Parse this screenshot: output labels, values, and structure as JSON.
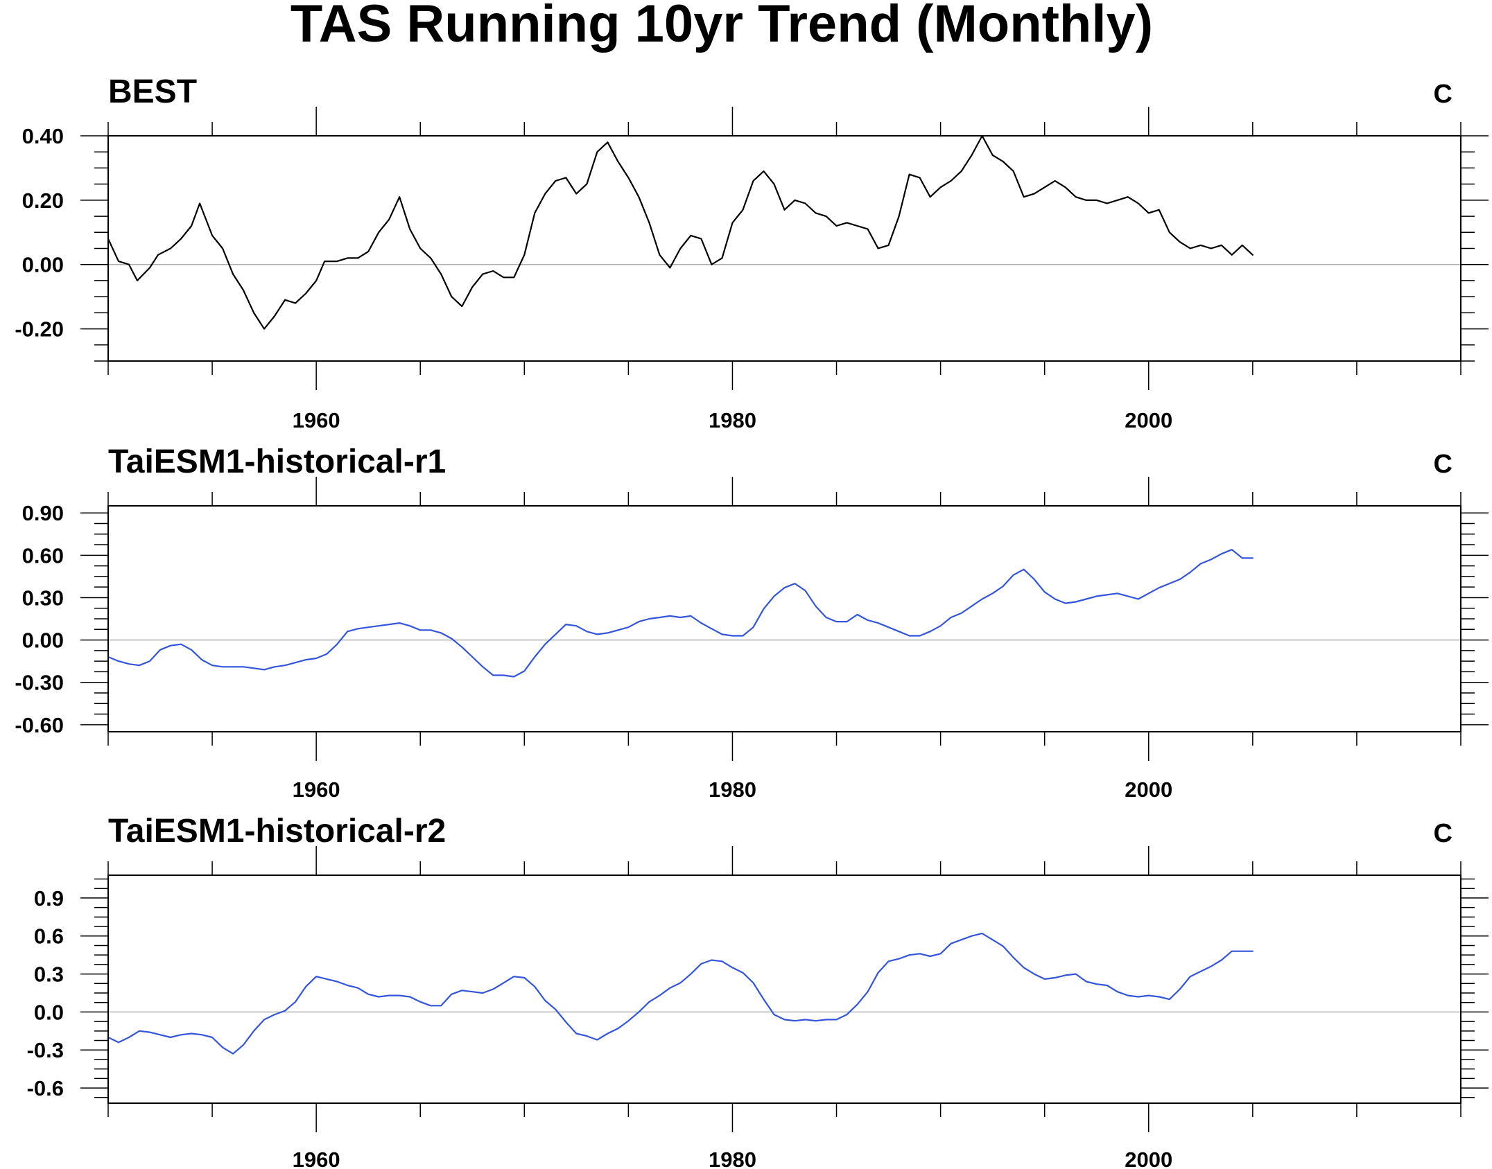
{
  "figure": {
    "title": "TAS Running 10yr Trend (Monthly)"
  },
  "colors": {
    "axis": "#000000",
    "zero_line": "#b0b0b0"
  },
  "chart_data": [
    {
      "type": "line",
      "title": "BEST",
      "unit": "C",
      "xlim": [
        1950,
        2015
      ],
      "ylim": [
        -0.3,
        0.4
      ],
      "yticks": [
        -0.2,
        0.0,
        0.2,
        0.4
      ],
      "ytick_labels": [
        "-0.20",
        "0.00",
        "0.20",
        "0.40"
      ],
      "xticks": [
        1960,
        1980,
        2000
      ],
      "xtick_labels": [
        "1960",
        "1980",
        "2000"
      ],
      "zero_line": 0,
      "series": [
        {
          "color": "#000000",
          "x": [
            1950.0,
            1950.5,
            1951.0,
            1951.4,
            1952.0,
            1952.4,
            1953.0,
            1953.5,
            1954.0,
            1954.4,
            1955.0,
            1955.5,
            1956.0,
            1956.5,
            1957.0,
            1957.5,
            1958.0,
            1958.5,
            1959.0,
            1959.5,
            1960.0,
            1960.4,
            1961.0,
            1961.5,
            1962.0,
            1962.5,
            1963.0,
            1963.5,
            1964.0,
            1964.5,
            1965.0,
            1965.5,
            1966.0,
            1966.5,
            1967.0,
            1967.5,
            1968.0,
            1968.5,
            1969.0,
            1969.5,
            1970.0,
            1970.5,
            1971.0,
            1971.5,
            1972.0,
            1972.5,
            1973.0,
            1973.5,
            1974.0,
            1974.5,
            1975.0,
            1975.5,
            1976.0,
            1976.5,
            1977.0,
            1977.5,
            1978.0,
            1978.5,
            1979.0,
            1979.5,
            1980.0,
            1980.5,
            1981.0,
            1981.5,
            1982.0,
            1982.5,
            1983.0,
            1983.5,
            1984.0,
            1984.5,
            1985.0,
            1985.5,
            1986.0,
            1986.5,
            1987.0,
            1987.5,
            1988.0,
            1988.5,
            1989.0,
            1989.5,
            1990.0,
            1990.5,
            1991.0,
            1991.5,
            1992.0,
            1992.5,
            1993.0,
            1993.5,
            1994.0,
            1994.5,
            1995.0,
            1995.5,
            1996.0,
            1996.5,
            1997.0,
            1997.5,
            1998.0,
            1998.5,
            1999.0,
            1999.5,
            2000.0,
            2000.5,
            2001.0,
            2001.5,
            2002.0,
            2002.5,
            2003.0,
            2003.5,
            2004.0,
            2004.5,
            2005.0
          ],
          "y": [
            0.08,
            0.01,
            0.0,
            -0.05,
            -0.01,
            0.03,
            0.05,
            0.08,
            0.12,
            0.19,
            0.09,
            0.05,
            -0.03,
            -0.08,
            -0.15,
            -0.2,
            -0.16,
            -0.11,
            -0.12,
            -0.09,
            -0.05,
            0.01,
            0.01,
            0.02,
            0.02,
            0.04,
            0.1,
            0.14,
            0.21,
            0.11,
            0.05,
            0.02,
            -0.03,
            -0.1,
            -0.13,
            -0.07,
            -0.03,
            -0.02,
            -0.04,
            -0.04,
            0.03,
            0.16,
            0.22,
            0.26,
            0.27,
            0.22,
            0.25,
            0.35,
            0.38,
            0.32,
            0.27,
            0.21,
            0.13,
            0.03,
            -0.01,
            0.05,
            0.09,
            0.08,
            0.0,
            0.02,
            0.13,
            0.17,
            0.26,
            0.29,
            0.25,
            0.17,
            0.2,
            0.19,
            0.16,
            0.15,
            0.12,
            0.13,
            0.12,
            0.11,
            0.05,
            0.06,
            0.15,
            0.28,
            0.27,
            0.21,
            0.24,
            0.26,
            0.29,
            0.34,
            0.4,
            0.34,
            0.32,
            0.29,
            0.21,
            0.22,
            0.24,
            0.26,
            0.24,
            0.21,
            0.2,
            0.2,
            0.19,
            0.2,
            0.21,
            0.19,
            0.16,
            0.17,
            0.1,
            0.07,
            0.05,
            0.06,
            0.05,
            0.06,
            0.03,
            0.06,
            0.03
          ]
        }
      ]
    },
    {
      "type": "line",
      "title": "TaiESM1-historical-r1",
      "unit": "C",
      "xlim": [
        1950,
        2015
      ],
      "ylim": [
        -0.65,
        0.95
      ],
      "yticks": [
        -0.6,
        -0.3,
        0.0,
        0.3,
        0.6,
        0.9
      ],
      "ytick_labels": [
        "-0.60",
        "-0.30",
        "0.00",
        "0.30",
        "0.60",
        "0.90"
      ],
      "xticks": [
        1960,
        1980,
        2000
      ],
      "xtick_labels": [
        "1960",
        "1980",
        "2000"
      ],
      "zero_line": 0,
      "series": [
        {
          "color": "#3355dd",
          "x": [
            1950.0,
            1950.5,
            1951.0,
            1951.5,
            1952.0,
            1952.5,
            1953.0,
            1953.5,
            1954.0,
            1954.5,
            1955.0,
            1955.5,
            1956.0,
            1956.5,
            1957.0,
            1957.5,
            1958.0,
            1958.5,
            1959.0,
            1959.5,
            1960.0,
            1960.5,
            1961.0,
            1961.5,
            1962.0,
            1962.5,
            1963.0,
            1963.5,
            1964.0,
            1964.5,
            1965.0,
            1965.5,
            1966.0,
            1966.5,
            1967.0,
            1967.5,
            1968.0,
            1968.5,
            1969.0,
            1969.5,
            1970.0,
            1970.5,
            1971.0,
            1971.5,
            1972.0,
            1972.5,
            1973.0,
            1973.5,
            1974.0,
            1974.5,
            1975.0,
            1975.5,
            1976.0,
            1976.5,
            1977.0,
            1977.5,
            1978.0,
            1978.5,
            1979.0,
            1979.5,
            1980.0,
            1980.5,
            1981.0,
            1981.5,
            1982.0,
            1982.5,
            1983.0,
            1983.5,
            1984.0,
            1984.5,
            1985.0,
            1985.5,
            1986.0,
            1986.5,
            1987.0,
            1987.5,
            1988.0,
            1988.5,
            1989.0,
            1989.5,
            1990.0,
            1990.5,
            1991.0,
            1991.5,
            1992.0,
            1992.5,
            1993.0,
            1993.5,
            1994.0,
            1994.5,
            1995.0,
            1995.5,
            1996.0,
            1996.5,
            1997.0,
            1997.5,
            1998.0,
            1998.5,
            1999.0,
            1999.5,
            2000.0,
            2000.5,
            2001.0,
            2001.5,
            2002.0,
            2002.5,
            2003.0,
            2003.5,
            2004.0,
            2004.5,
            2005.0
          ],
          "y": [
            -0.12,
            -0.15,
            -0.17,
            -0.18,
            -0.15,
            -0.07,
            -0.04,
            -0.03,
            -0.07,
            -0.14,
            -0.18,
            -0.19,
            -0.19,
            -0.19,
            -0.2,
            -0.21,
            -0.19,
            -0.18,
            -0.16,
            -0.14,
            -0.13,
            -0.1,
            -0.03,
            0.06,
            0.08,
            0.09,
            0.1,
            0.11,
            0.12,
            0.1,
            0.07,
            0.07,
            0.05,
            0.01,
            -0.05,
            -0.12,
            -0.19,
            -0.25,
            -0.25,
            -0.26,
            -0.22,
            -0.12,
            -0.03,
            0.04,
            0.11,
            0.1,
            0.06,
            0.04,
            0.05,
            0.07,
            0.09,
            0.13,
            0.15,
            0.16,
            0.17,
            0.16,
            0.17,
            0.12,
            0.08,
            0.04,
            0.03,
            0.03,
            0.09,
            0.22,
            0.31,
            0.37,
            0.4,
            0.35,
            0.24,
            0.16,
            0.13,
            0.13,
            0.18,
            0.14,
            0.12,
            0.09,
            0.06,
            0.03,
            0.03,
            0.06,
            0.1,
            0.16,
            0.19,
            0.24,
            0.29,
            0.33,
            0.38,
            0.46,
            0.5,
            0.43,
            0.34,
            0.29,
            0.26,
            0.27,
            0.29,
            0.31,
            0.32,
            0.33,
            0.31,
            0.29,
            0.33,
            0.37,
            0.4,
            0.43,
            0.48,
            0.54,
            0.57,
            0.61,
            0.64,
            0.58,
            0.58
          ]
        }
      ]
    },
    {
      "type": "line",
      "title": "TaiESM1-historical-r2",
      "unit": "C",
      "xlim": [
        1950,
        2015
      ],
      "ylim": [
        -0.72,
        1.08
      ],
      "yticks": [
        -0.6,
        -0.3,
        0.0,
        0.3,
        0.6,
        0.9
      ],
      "ytick_labels": [
        "-0.6",
        "-0.3",
        "0.0",
        "0.3",
        "0.6",
        "0.9"
      ],
      "xticks": [
        1960,
        1980,
        2000
      ],
      "xtick_labels": [
        "1960",
        "1980",
        "2000"
      ],
      "zero_line": 0,
      "series": [
        {
          "color": "#3355dd",
          "x": [
            1950.0,
            1950.5,
            1951.0,
            1951.5,
            1952.0,
            1952.5,
            1953.0,
            1953.5,
            1954.0,
            1954.5,
            1955.0,
            1955.5,
            1956.0,
            1956.5,
            1957.0,
            1957.5,
            1958.0,
            1958.5,
            1959.0,
            1959.5,
            1960.0,
            1960.5,
            1961.0,
            1961.5,
            1962.0,
            1962.5,
            1963.0,
            1963.5,
            1964.0,
            1964.5,
            1965.0,
            1965.5,
            1966.0,
            1966.5,
            1967.0,
            1967.5,
            1968.0,
            1968.5,
            1969.0,
            1969.5,
            1970.0,
            1970.5,
            1971.0,
            1971.5,
            1972.0,
            1972.5,
            1973.0,
            1973.5,
            1974.0,
            1974.5,
            1975.0,
            1975.5,
            1976.0,
            1976.5,
            1977.0,
            1977.5,
            1978.0,
            1978.5,
            1979.0,
            1979.5,
            1980.0,
            1980.5,
            1981.0,
            1981.5,
            1982.0,
            1982.5,
            1983.0,
            1983.5,
            1984.0,
            1984.5,
            1985.0,
            1985.5,
            1986.0,
            1986.5,
            1987.0,
            1987.5,
            1988.0,
            1988.5,
            1989.0,
            1989.5,
            1990.0,
            1990.5,
            1991.0,
            1991.5,
            1992.0,
            1992.5,
            1993.0,
            1993.5,
            1994.0,
            1994.5,
            1995.0,
            1995.5,
            1996.0,
            1996.5,
            1997.0,
            1997.5,
            1998.0,
            1998.5,
            1999.0,
            1999.5,
            2000.0,
            2000.5,
            2001.0,
            2001.5,
            2002.0,
            2002.5,
            2003.0,
            2003.5,
            2004.0,
            2004.5,
            2005.0
          ],
          "y": [
            -0.2,
            -0.24,
            -0.2,
            -0.15,
            -0.16,
            -0.18,
            -0.2,
            -0.18,
            -0.17,
            -0.18,
            -0.2,
            -0.28,
            -0.33,
            -0.26,
            -0.15,
            -0.06,
            -0.02,
            0.01,
            0.08,
            0.2,
            0.28,
            0.26,
            0.24,
            0.21,
            0.19,
            0.14,
            0.12,
            0.13,
            0.13,
            0.12,
            0.08,
            0.05,
            0.05,
            0.14,
            0.17,
            0.16,
            0.15,
            0.18,
            0.23,
            0.28,
            0.27,
            0.2,
            0.09,
            0.02,
            -0.08,
            -0.17,
            -0.19,
            -0.22,
            -0.17,
            -0.13,
            -0.07,
            0.0,
            0.08,
            0.13,
            0.19,
            0.23,
            0.3,
            0.38,
            0.41,
            0.4,
            0.35,
            0.31,
            0.23,
            0.1,
            -0.02,
            -0.06,
            -0.07,
            -0.06,
            -0.07,
            -0.06,
            -0.06,
            -0.02,
            0.06,
            0.16,
            0.31,
            0.4,
            0.42,
            0.45,
            0.46,
            0.44,
            0.46,
            0.54,
            0.57,
            0.6,
            0.62,
            0.57,
            0.52,
            0.43,
            0.35,
            0.3,
            0.26,
            0.27,
            0.29,
            0.3,
            0.24,
            0.22,
            0.21,
            0.16,
            0.13,
            0.12,
            0.13,
            0.12,
            0.1,
            0.18,
            0.28,
            0.32,
            0.36,
            0.41,
            0.48,
            0.48,
            0.48
          ]
        }
      ]
    }
  ]
}
